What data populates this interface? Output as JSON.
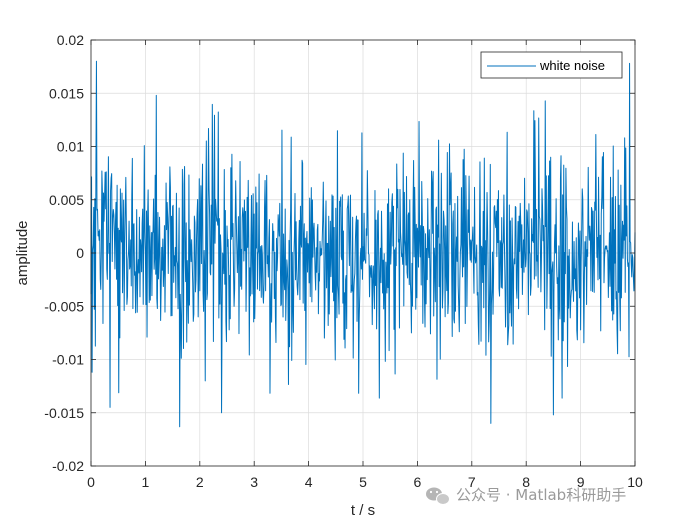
{
  "chart_data": {
    "type": "line",
    "title": "",
    "xlabel": "t / s",
    "ylabel": "amplitude",
    "xlim": [
      0,
      10
    ],
    "ylim": [
      -0.02,
      0.02
    ],
    "x_ticks": [
      "0",
      "1",
      "2",
      "3",
      "4",
      "5",
      "6",
      "7",
      "8",
      "9",
      "10"
    ],
    "y_ticks": [
      "0.02",
      "0.015",
      "0.01",
      "0.005",
      "0",
      "-0.005",
      "-0.01",
      "-0.015",
      "-0.02"
    ],
    "grid": true,
    "legend_position": "top-right",
    "series": [
      {
        "name": "white noise",
        "color": "#0072BD",
        "n_points": 1001,
        "x_start": 0,
        "x_end": 10,
        "std": 0.0045,
        "notable_peaks": [
          {
            "x": 0.1,
            "y": 0.018
          },
          {
            "x": 9.9,
            "y": 0.0178
          },
          {
            "x": 1.2,
            "y": 0.0148
          },
          {
            "x": 0.35,
            "y": -0.0145
          },
          {
            "x": 2.4,
            "y": -0.015
          },
          {
            "x": 7.35,
            "y": -0.016
          },
          {
            "x": 8.5,
            "y": -0.0152
          },
          {
            "x": 0.02,
            "y": -0.0112
          }
        ]
      }
    ]
  },
  "watermark": {
    "text": "公众号 · Matlab科研助手",
    "icon": "wechat-icon"
  }
}
